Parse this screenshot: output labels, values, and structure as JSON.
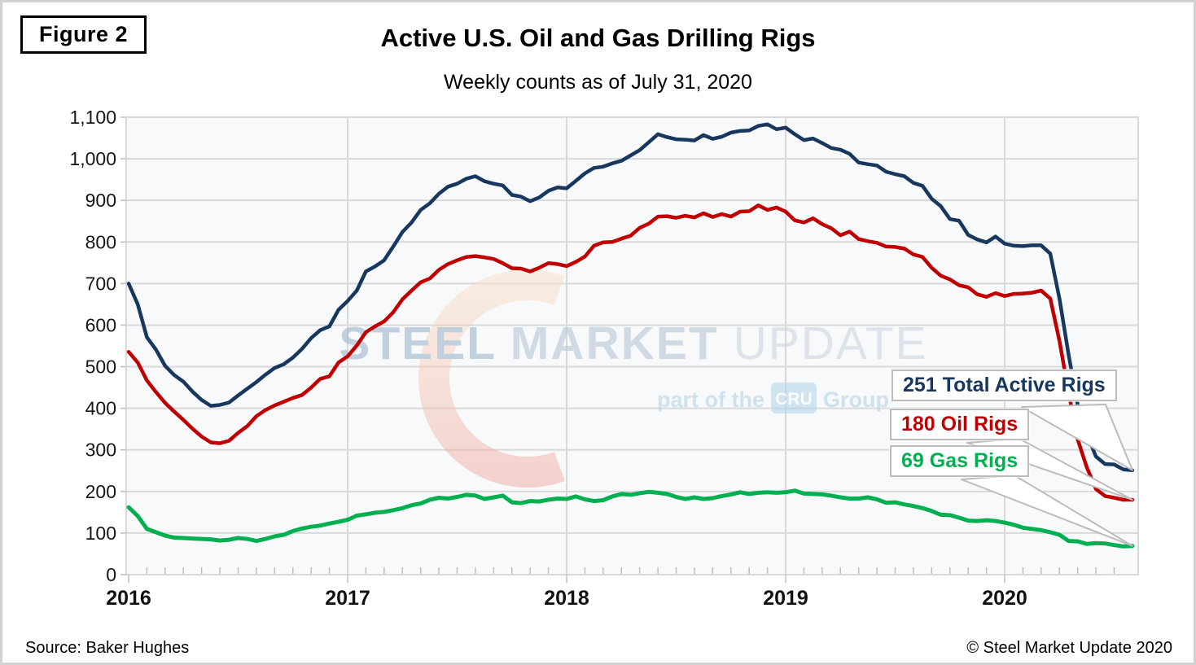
{
  "figure_label": "Figure 2",
  "title": "Active U.S. Oil and Gas Drilling Rigs",
  "subtitle": "Weekly counts as of July 31, 2020",
  "footer": {
    "source": "Source: Baker Hughes",
    "copyright": "© Steel Market Update 2020"
  },
  "watermark": {
    "word1": "STEEL",
    "word2": "MARKET",
    "word3": "UPDATE",
    "tagline_prefix": "part of the",
    "tagline_box": "CRU",
    "tagline_suffix": "Group"
  },
  "colors": {
    "total": "#17375e",
    "oil": "#c00000",
    "gas": "#00b050",
    "grid": "#d9d9d9",
    "plot_bg": "#f8f9fb",
    "tick": "#bdbdbd",
    "callout_border": "#bcbcbc",
    "axis_text": "#161616",
    "watermark_word1": "#9db4ce",
    "watermark_word2": "#b4c5d8",
    "watermark_word3": "#cbd4df",
    "watermark_tagline": "#b3d0e6",
    "watermark_cru_box": "#b5d4ea"
  },
  "chart_data": {
    "type": "line",
    "title": "Active U.S. Oil and Gas Drilling Rigs",
    "subtitle": "Weekly counts as of July 31, 2020",
    "xlabel": "",
    "ylabel": "",
    "x_start": 2016.0,
    "x_step": 0.0416667,
    "x_end": 2020.583,
    "ylim": [
      0,
      1100
    ],
    "grid": "horizontal every 100, vertical at each year",
    "legend_position": "none (callout labels at line ends)",
    "x_tick_labels": [
      "2016",
      "2017",
      "2018",
      "2019",
      "2020"
    ],
    "x_tick_years": [
      2016,
      2017,
      2018,
      2019,
      2020
    ],
    "y_tick_values": [
      0,
      100,
      200,
      300,
      400,
      500,
      600,
      700,
      800,
      900,
      1000,
      1100
    ],
    "y_tick_labels": [
      "0",
      "100",
      "200",
      "300",
      "400",
      "500",
      "600",
      "700",
      "800",
      "900",
      "1,000",
      "1,100"
    ],
    "series": [
      {
        "name": "Total Active Rigs",
        "color": "#17375e",
        "width": 4.5,
        "values": [
          700,
          650,
          571,
          541,
          502,
          480,
          464,
          440,
          420,
          406,
          408,
          414,
          431,
          447,
          463,
          481,
          497,
          506,
          522,
          543,
          569,
          588,
          597,
          637,
          658,
          683,
          729,
          741,
          756,
          789,
          824,
          847,
          877,
          893,
          916,
          933,
          940,
          952,
          958,
          946,
          940,
          936,
          913,
          909,
          898,
          907,
          923,
          931,
          929,
          947,
          965,
          978,
          981,
          989,
          995,
          1008,
          1021,
          1040,
          1059,
          1052,
          1047,
          1046,
          1044,
          1057,
          1048,
          1053,
          1063,
          1067,
          1068,
          1079,
          1083,
          1071,
          1075,
          1059,
          1045,
          1049,
          1038,
          1026,
          1022,
          1012,
          991,
          987,
          984,
          969,
          963,
          958,
          942,
          935,
          904,
          886,
          855,
          851,
          817,
          806,
          799,
          813,
          796,
          791,
          790,
          792,
          792,
          772,
          664,
          529,
          408,
          339,
          284,
          266,
          265,
          253,
          251
        ]
      },
      {
        "name": "Oil Rigs",
        "color": "#c00000",
        "width": 4.5,
        "values": [
          536,
          510,
          467,
          439,
          413,
          392,
          372,
          351,
          332,
          318,
          316,
          322,
          341,
          357,
          381,
          396,
          407,
          416,
          425,
          432,
          450,
          471,
          477,
          510,
          525,
          551,
          583,
          597,
          609,
          631,
          662,
          683,
          703,
          712,
          733,
          747,
          756,
          764,
          766,
          763,
          759,
          749,
          737,
          736,
          729,
          738,
          749,
          747,
          742,
          752,
          765,
          791,
          799,
          800,
          808,
          815,
          834,
          844,
          861,
          862,
          858,
          863,
          859,
          869,
          860,
          867,
          861,
          873,
          874,
          888,
          877,
          883,
          873,
          852,
          847,
          857,
          843,
          833,
          816,
          825,
          807,
          802,
          798,
          789,
          788,
          784,
          770,
          764,
          738,
          719,
          710,
          696,
          691,
          674,
          668,
          677,
          670,
          675,
          676,
          678,
          683,
          664,
          562,
          438,
          325,
          258,
          206,
          189,
          185,
          180,
          180
        ]
      },
      {
        "name": "Gas Rigs",
        "color": "#00b050",
        "width": 5,
        "values": [
          162,
          141,
          110,
          102,
          94,
          89,
          88,
          87,
          86,
          85,
          82,
          84,
          88,
          86,
          81,
          86,
          92,
          96,
          105,
          111,
          115,
          118,
          123,
          127,
          132,
          142,
          145,
          149,
          151,
          155,
          160,
          167,
          171,
          180,
          185,
          183,
          187,
          192,
          190,
          182,
          186,
          190,
          174,
          172,
          177,
          176,
          180,
          183,
          182,
          188,
          181,
          177,
          179,
          188,
          194,
          192,
          196,
          199,
          197,
          194,
          187,
          182,
          186,
          182,
          184,
          189,
          193,
          198,
          194,
          197,
          198,
          197,
          198,
          202,
          195,
          194,
          193,
          190,
          186,
          183,
          183,
          186,
          181,
          173,
          174,
          169,
          165,
          160,
          153,
          144,
          143,
          137,
          130,
          129,
          131,
          129,
          125,
          120,
          113,
          110,
          107,
          102,
          96,
          81,
          80,
          74,
          76,
          75,
          71,
          68,
          69
        ]
      }
    ],
    "annotations": [
      {
        "label": "251 Total Active Rigs",
        "value": 251,
        "series": "Total Active Rigs",
        "color": "#17375e"
      },
      {
        "label": "180 Oil Rigs",
        "value": 180,
        "series": "Oil Rigs",
        "color": "#c00000"
      },
      {
        "label": "69 Gas Rigs",
        "value": 69,
        "series": "Gas Rigs",
        "color": "#00b050"
      }
    ]
  }
}
